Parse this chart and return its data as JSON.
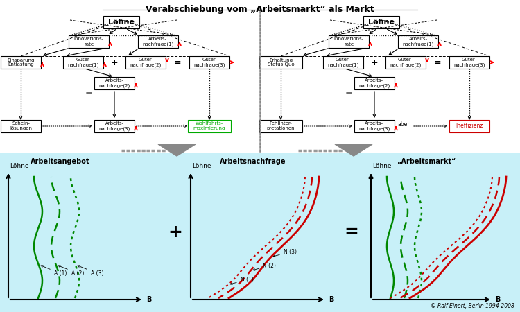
{
  "title": "Verabschiebung vom „Arbeitsmarkt“ als Markt",
  "bg_bottom": "#c8f0f8",
  "copyright": "© Ralf Einert, Berlin 1994-2008",
  "left": {
    "loehne": "Löhne",
    "innov": "Innovations-\nrate",
    "arbeit1": "Arbeits-\nnachfrage(1)",
    "einspar": "Einsparung\nEntlastung",
    "gueter1": "Güter-\nnachfrage(1)",
    "gueter2": "Güter-\nnachfrage(2)",
    "gueter3": "Güter-\nnachfrage(3)",
    "arbeit2": "Arbeits-\nnachfrage(2)",
    "schein": "Schein-\nlösungen",
    "arbeit3": "Arbeits-\nnachfrage(3)",
    "result": "Wohlfahrts-\nmaximierung",
    "result_color": "#00aa00"
  },
  "right": {
    "loehne": "Löhne",
    "innov": "Innovations-\nrate",
    "arbeit1": "Arbeits-\nnachfrage(1)",
    "erhalt": "Erhaltung\nStatus Quo",
    "gueter1": "Güter-\nnachfrage(1)",
    "gueter2": "Güter-\nnachfrage(2)",
    "gueter3": "Güter-\nnachfrage(3)",
    "arbeit2": "Arbeits-\nnachfrage(2)",
    "fehlint": "Fehlinter-\npretationen",
    "arbeit3": "Arbeits-\nnachfrage(3)",
    "aber": "aber:",
    "result": "Ineffizienz",
    "result_color": "#cc0000"
  },
  "bottom": {
    "title1": "Arbeitsangebot",
    "title2": "Arbeitsnachfrage",
    "title3": "„Arbeitsmarkt“",
    "loehne": "Löhne",
    "b": "B",
    "plus": "+",
    "equals": "=",
    "a_labels": [
      "A (1)",
      "A (2)",
      "A (3)"
    ],
    "n_labels": [
      "N (1)",
      "N (2)",
      "N (3)"
    ]
  }
}
